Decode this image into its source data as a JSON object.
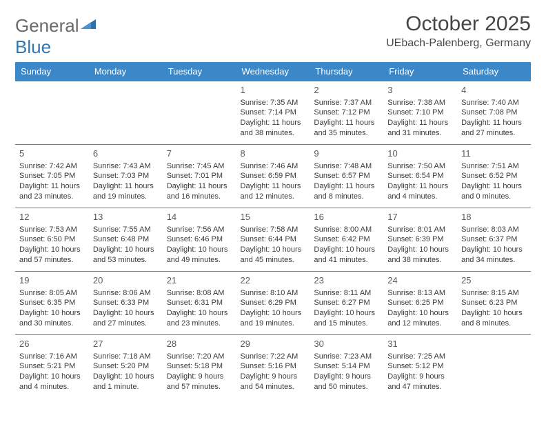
{
  "brand": {
    "part1": "General",
    "part2": "Blue"
  },
  "title": "October 2025",
  "location": "UEbach-Palenberg, Germany",
  "colors": {
    "header_bg": "#3b87c8",
    "header_text": "#ffffff",
    "border": "#3b87c8",
    "logo_gray": "#6a6a6a",
    "logo_blue": "#3277b3",
    "body_text": "#3a3a3a"
  },
  "dow": [
    "Sunday",
    "Monday",
    "Tuesday",
    "Wednesday",
    "Thursday",
    "Friday",
    "Saturday"
  ],
  "weeks": [
    [
      null,
      null,
      null,
      {
        "n": "1",
        "r": "7:35 AM",
        "s": "7:14 PM",
        "d": "11 hours and 38 minutes."
      },
      {
        "n": "2",
        "r": "7:37 AM",
        "s": "7:12 PM",
        "d": "11 hours and 35 minutes."
      },
      {
        "n": "3",
        "r": "7:38 AM",
        "s": "7:10 PM",
        "d": "11 hours and 31 minutes."
      },
      {
        "n": "4",
        "r": "7:40 AM",
        "s": "7:08 PM",
        "d": "11 hours and 27 minutes."
      }
    ],
    [
      {
        "n": "5",
        "r": "7:42 AM",
        "s": "7:05 PM",
        "d": "11 hours and 23 minutes."
      },
      {
        "n": "6",
        "r": "7:43 AM",
        "s": "7:03 PM",
        "d": "11 hours and 19 minutes."
      },
      {
        "n": "7",
        "r": "7:45 AM",
        "s": "7:01 PM",
        "d": "11 hours and 16 minutes."
      },
      {
        "n": "8",
        "r": "7:46 AM",
        "s": "6:59 PM",
        "d": "11 hours and 12 minutes."
      },
      {
        "n": "9",
        "r": "7:48 AM",
        "s": "6:57 PM",
        "d": "11 hours and 8 minutes."
      },
      {
        "n": "10",
        "r": "7:50 AM",
        "s": "6:54 PM",
        "d": "11 hours and 4 minutes."
      },
      {
        "n": "11",
        "r": "7:51 AM",
        "s": "6:52 PM",
        "d": "11 hours and 0 minutes."
      }
    ],
    [
      {
        "n": "12",
        "r": "7:53 AM",
        "s": "6:50 PM",
        "d": "10 hours and 57 minutes."
      },
      {
        "n": "13",
        "r": "7:55 AM",
        "s": "6:48 PM",
        "d": "10 hours and 53 minutes."
      },
      {
        "n": "14",
        "r": "7:56 AM",
        "s": "6:46 PM",
        "d": "10 hours and 49 minutes."
      },
      {
        "n": "15",
        "r": "7:58 AM",
        "s": "6:44 PM",
        "d": "10 hours and 45 minutes."
      },
      {
        "n": "16",
        "r": "8:00 AM",
        "s": "6:42 PM",
        "d": "10 hours and 41 minutes."
      },
      {
        "n": "17",
        "r": "8:01 AM",
        "s": "6:39 PM",
        "d": "10 hours and 38 minutes."
      },
      {
        "n": "18",
        "r": "8:03 AM",
        "s": "6:37 PM",
        "d": "10 hours and 34 minutes."
      }
    ],
    [
      {
        "n": "19",
        "r": "8:05 AM",
        "s": "6:35 PM",
        "d": "10 hours and 30 minutes."
      },
      {
        "n": "20",
        "r": "8:06 AM",
        "s": "6:33 PM",
        "d": "10 hours and 27 minutes."
      },
      {
        "n": "21",
        "r": "8:08 AM",
        "s": "6:31 PM",
        "d": "10 hours and 23 minutes."
      },
      {
        "n": "22",
        "r": "8:10 AM",
        "s": "6:29 PM",
        "d": "10 hours and 19 minutes."
      },
      {
        "n": "23",
        "r": "8:11 AM",
        "s": "6:27 PM",
        "d": "10 hours and 15 minutes."
      },
      {
        "n": "24",
        "r": "8:13 AM",
        "s": "6:25 PM",
        "d": "10 hours and 12 minutes."
      },
      {
        "n": "25",
        "r": "8:15 AM",
        "s": "6:23 PM",
        "d": "10 hours and 8 minutes."
      }
    ],
    [
      {
        "n": "26",
        "r": "7:16 AM",
        "s": "5:21 PM",
        "d": "10 hours and 4 minutes."
      },
      {
        "n": "27",
        "r": "7:18 AM",
        "s": "5:20 PM",
        "d": "10 hours and 1 minute."
      },
      {
        "n": "28",
        "r": "7:20 AM",
        "s": "5:18 PM",
        "d": "9 hours and 57 minutes."
      },
      {
        "n": "29",
        "r": "7:22 AM",
        "s": "5:16 PM",
        "d": "9 hours and 54 minutes."
      },
      {
        "n": "30",
        "r": "7:23 AM",
        "s": "5:14 PM",
        "d": "9 hours and 50 minutes."
      },
      {
        "n": "31",
        "r": "7:25 AM",
        "s": "5:12 PM",
        "d": "9 hours and 47 minutes."
      },
      null
    ]
  ],
  "labels": {
    "sunrise": "Sunrise: ",
    "sunset": "Sunset: ",
    "daylight": "Daylight: "
  }
}
